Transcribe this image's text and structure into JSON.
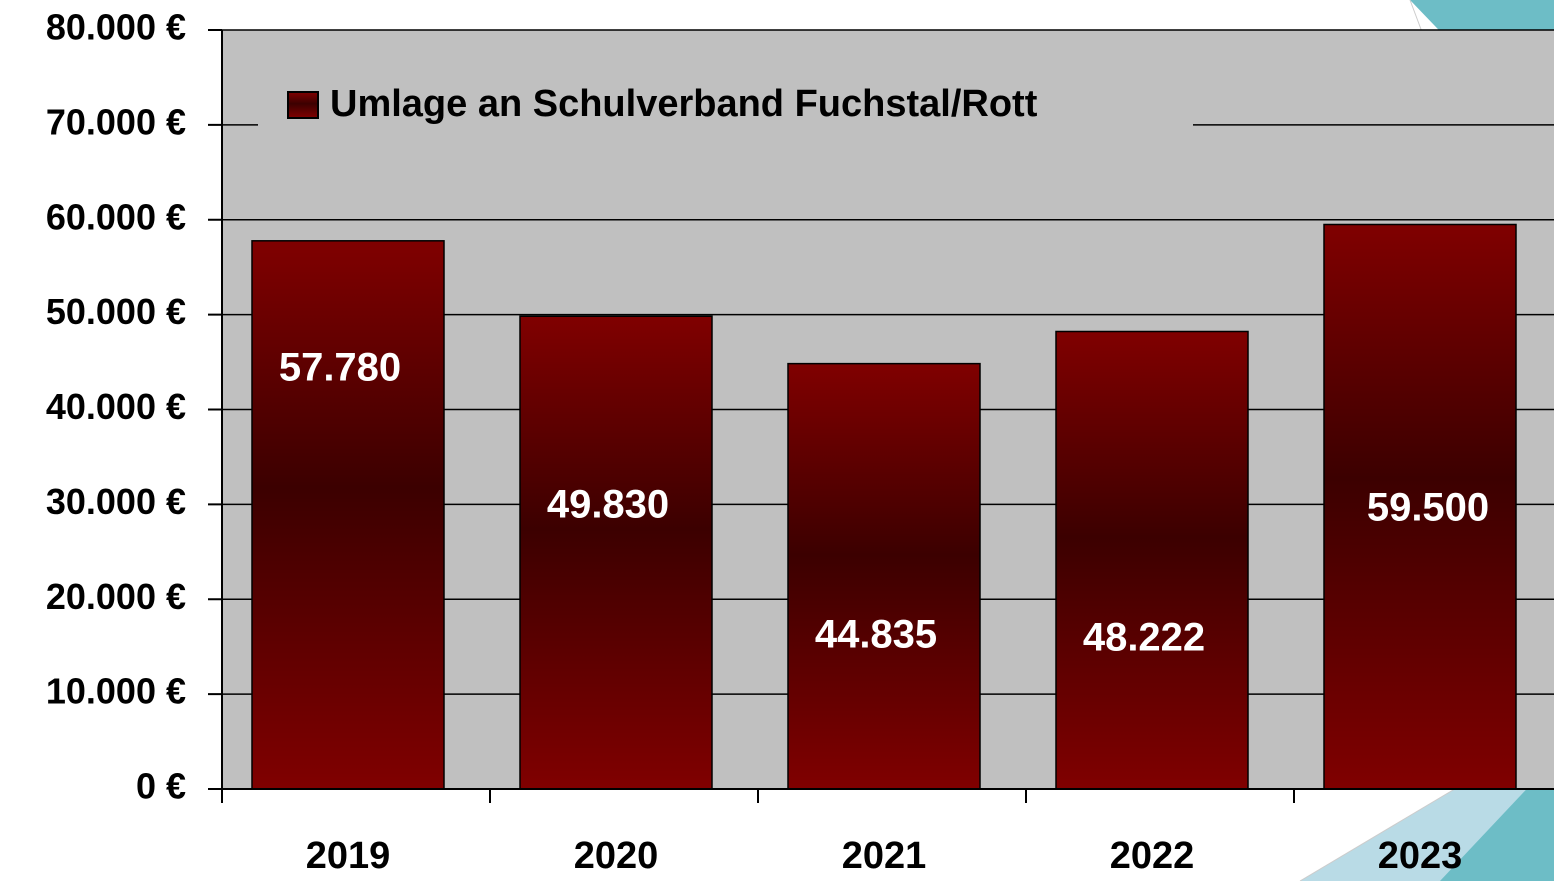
{
  "chart_data": {
    "type": "bar",
    "categories": [
      "2019",
      "2020",
      "2021",
      "2022",
      "2023"
    ],
    "series": [
      {
        "name": "Umlage an Schulverband Fuchstal/Rott",
        "color": "#7a0000",
        "values": [
          57780,
          49830,
          44835,
          48222,
          59500
        ],
        "value_labels": [
          "57.780",
          "49.830",
          "44.835",
          "48.222",
          "59.500"
        ]
      }
    ],
    "ylim": [
      0,
      80000
    ],
    "yticks": [
      {
        "value": 0,
        "label": "0 €"
      },
      {
        "value": 10000,
        "label": "10.000 €"
      },
      {
        "value": 20000,
        "label": "20.000 €"
      },
      {
        "value": 30000,
        "label": "30.000 €"
      },
      {
        "value": 40000,
        "label": "40.000 €"
      },
      {
        "value": 50000,
        "label": "50.000 €"
      },
      {
        "value": 60000,
        "label": "60.000 €"
      },
      {
        "value": 70000,
        "label": "70.000 €"
      },
      {
        "value": 80000,
        "label": "80.000 €"
      }
    ],
    "grid": true,
    "legend": "top-left"
  }
}
